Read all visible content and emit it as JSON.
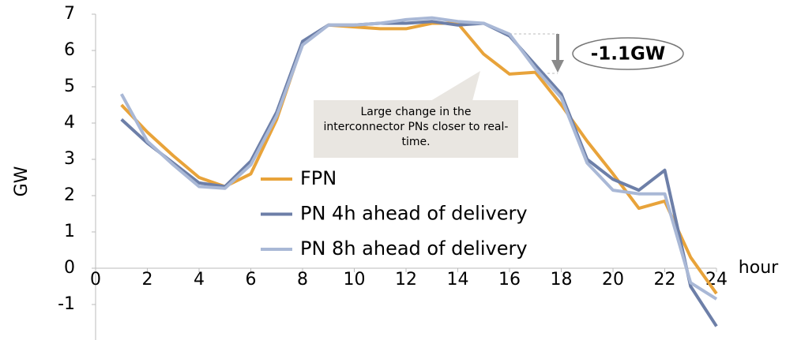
{
  "chart_data": {
    "type": "line",
    "x": [
      1,
      2,
      3,
      4,
      5,
      6,
      7,
      8,
      9,
      10,
      11,
      12,
      13,
      14,
      15,
      16,
      17,
      18,
      19,
      20,
      21,
      22,
      23,
      24
    ],
    "series": [
      {
        "name": "FPN",
        "color": "#e8a33a",
        "values": [
          4.5,
          3.75,
          3.1,
          2.5,
          2.25,
          2.6,
          4.1,
          6.2,
          6.7,
          6.65,
          6.6,
          6.6,
          6.75,
          6.75,
          5.9,
          5.35,
          5.4,
          4.5,
          3.5,
          2.6,
          1.65,
          1.85,
          0.3,
          -0.7
        ]
      },
      {
        "name": "PN 4h ahead of delivery",
        "color": "#6d7fa8",
        "values": [
          4.1,
          3.45,
          2.9,
          2.35,
          2.25,
          2.95,
          4.3,
          6.25,
          6.7,
          6.7,
          6.75,
          6.75,
          6.8,
          6.7,
          6.75,
          6.4,
          5.6,
          4.8,
          3.0,
          2.45,
          2.15,
          2.7,
          -0.5,
          -1.6
        ]
      },
      {
        "name": "PN 8h ahead of delivery",
        "color": "#a9b8d6",
        "values": [
          4.8,
          3.5,
          2.85,
          2.25,
          2.2,
          2.85,
          4.2,
          6.15,
          6.7,
          6.7,
          6.75,
          6.85,
          6.9,
          6.8,
          6.75,
          6.45,
          5.5,
          4.7,
          2.9,
          2.15,
          2.05,
          2.05,
          -0.4,
          -0.85
        ]
      }
    ],
    "xlim": [
      0,
      24
    ],
    "xticks": [
      0,
      2,
      4,
      6,
      8,
      10,
      12,
      14,
      16,
      18,
      20,
      22,
      24
    ],
    "ylim": [
      -2,
      7
    ],
    "yticks": [
      -1,
      0,
      1,
      2,
      3,
      4,
      5,
      6,
      7
    ],
    "x_label": "hour",
    "y_label": "GW",
    "grid": false,
    "legend": "center",
    "annotations": {
      "change": "-1.1GW",
      "callout": "Large change in the interconnector PNs closer to real-time."
    }
  }
}
